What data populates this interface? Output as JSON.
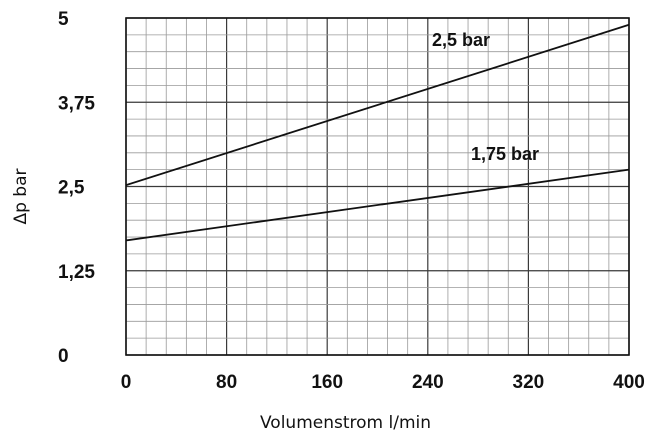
{
  "chart_data": {
    "type": "line",
    "xlabel": "Volumenstrom l/min",
    "ylabel": "Δp bar",
    "xlim": [
      0,
      400
    ],
    "ylim": [
      0,
      5
    ],
    "x_ticks": [
      "0",
      "80",
      "160",
      "240",
      "320",
      "400"
    ],
    "x_tick_values": [
      0,
      80,
      160,
      240,
      320,
      400
    ],
    "y_ticks": [
      "0",
      "1,25",
      "2,5",
      "3,75",
      "5"
    ],
    "y_tick_values": [
      0,
      1.25,
      2.5,
      3.75,
      5
    ],
    "x_minor_step": 16,
    "y_minor_step": 0.25,
    "grid": true,
    "legend": "none",
    "series": [
      {
        "name": "2,5 bar",
        "x": [
          0,
          400
        ],
        "y": [
          2.52,
          4.9
        ]
      },
      {
        "name": "1,75 bar",
        "x": [
          0,
          400
        ],
        "y": [
          1.7,
          2.75
        ]
      }
    ]
  }
}
